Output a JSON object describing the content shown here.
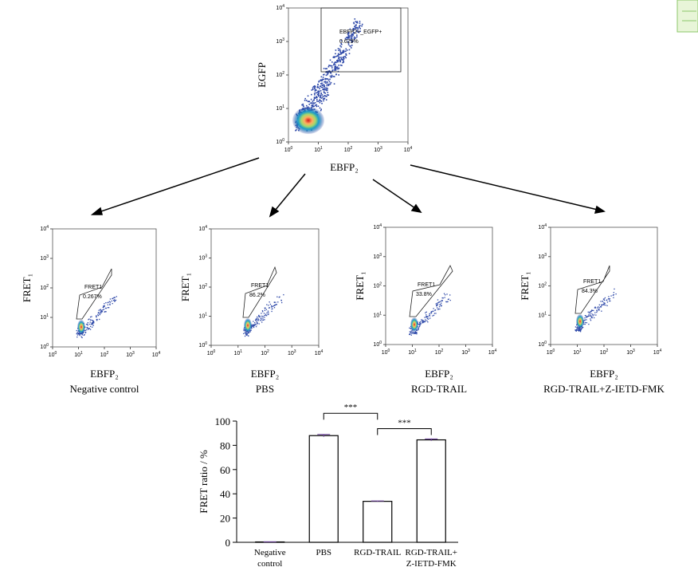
{
  "log_axis": {
    "base": "10",
    "exponents": [
      0,
      1,
      2,
      3,
      4
    ]
  },
  "flow_plots": [
    {
      "x_label": "EBFP₂",
      "y_label": "EGFP",
      "gate_name": "EBFP2+_EGFP+",
      "gate_percent": "0.629%"
    },
    {
      "x_label": "EBFP₂",
      "y_label": "FRET₁",
      "gate_name": "FRET1",
      "gate_percent": "0.267%",
      "caption": "Negative control"
    },
    {
      "x_label": "EBFP₂",
      "y_label": "FRET₁",
      "gate_name": "FRET1",
      "gate_percent": "86.2%",
      "caption": "PBS"
    },
    {
      "x_label": "EBFP₂",
      "y_label": "FRET₁",
      "gate_name": "FRET1",
      "gate_percent": "33.8%",
      "caption": "RGD-TRAIL"
    },
    {
      "x_label": "EBFP₂",
      "y_label": "FRET₁",
      "gate_name": "FRET1",
      "gate_percent": "84.3%",
      "caption": "RGD-TRAIL+Z-IETD-FMK"
    }
  ],
  "chart_data": {
    "type": "bar",
    "ylabel": "FRET ratio / %",
    "categories": [
      "Negative\ncontrol",
      "PBS",
      "RGD-TRAIL",
      "RGD-TRAIL+\nZ-IETD-FMK"
    ],
    "values": [
      0.3,
      88,
      33.8,
      84.5
    ],
    "errors": [
      0.1,
      1,
      0.3,
      0.8
    ],
    "color": "#ffffff",
    "edge_color": "#000000",
    "error_color": "#6a3d9a",
    "ylim": [
      0,
      100
    ],
    "yticks": [
      0,
      20,
      40,
      60,
      80,
      100
    ],
    "significance": [
      {
        "text": "***",
        "from": 1,
        "to": 2
      },
      {
        "text": "***",
        "from": 2,
        "to": 3
      }
    ]
  }
}
